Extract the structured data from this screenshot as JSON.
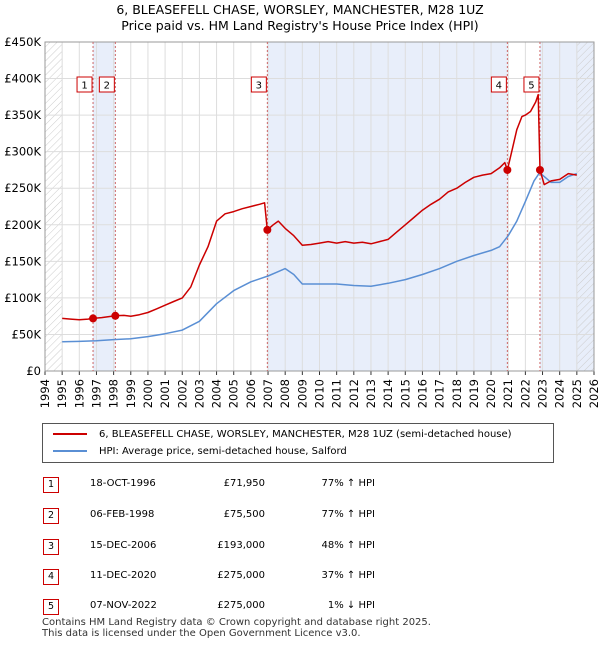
{
  "title_line1": "6, BLEASEFELL CHASE, WORSLEY, MANCHESTER, M28 1UZ",
  "title_line2": "Price paid vs. HM Land Registry's House Price Index (HPI)",
  "legend": {
    "property": "6, BLEASEFELL CHASE, WORSLEY, MANCHESTER, M28 1UZ (semi-detached house)",
    "hpi": "HPI: Average price, semi-detached house, Salford"
  },
  "colors": {
    "property_line": "#cc0000",
    "hpi_line": "#5a8fd4",
    "shade": "#e8eefa",
    "vline": "#cc6666"
  },
  "transactions": [
    {
      "num": "1",
      "date": "18-OCT-1996",
      "price": "£71,950",
      "hpi": "77% ↑ HPI",
      "t": 1996.8,
      "value": 71950
    },
    {
      "num": "2",
      "date": "06-FEB-1998",
      "price": "£75,500",
      "hpi": "77% ↑ HPI",
      "t": 1998.1,
      "value": 75500
    },
    {
      "num": "3",
      "date": "15-DEC-2006",
      "price": "£193,000",
      "hpi": "48% ↑ HPI",
      "t": 2006.96,
      "value": 193000
    },
    {
      "num": "4",
      "date": "11-DEC-2020",
      "price": "£275,000",
      "hpi": "37% ↑ HPI",
      "t": 2020.95,
      "value": 275000
    },
    {
      "num": "5",
      "date": "07-NOV-2022",
      "price": "£275,000",
      "hpi": "1% ↓ HPI",
      "t": 2022.85,
      "value": 275000
    }
  ],
  "footer_line1": "Contains HM Land Registry data © Crown copyright and database right 2025.",
  "footer_line2": "This data is licensed under the Open Government Licence v3.0.",
  "chart_data": {
    "type": "line",
    "title": "6, BLEASEFELL CHASE, WORSLEY, MANCHESTER, M28 1UZ — Price paid vs. HM Land Registry's House Price Index (HPI)",
    "xlabel": "",
    "ylabel": "",
    "xlim": [
      1994,
      2026
    ],
    "ylim": [
      0,
      450000
    ],
    "x_ticks": [
      1994,
      1995,
      1996,
      1997,
      1998,
      1999,
      2000,
      2001,
      2002,
      2003,
      2004,
      2005,
      2006,
      2007,
      2008,
      2009,
      2010,
      2011,
      2012,
      2013,
      2014,
      2015,
      2016,
      2017,
      2018,
      2019,
      2020,
      2021,
      2022,
      2023,
      2024,
      2025,
      2026
    ],
    "y_ticks": [
      0,
      50000,
      100000,
      150000,
      200000,
      250000,
      300000,
      350000,
      400000,
      450000
    ],
    "y_tick_labels": [
      "£0",
      "£50K",
      "£100K",
      "£150K",
      "£200K",
      "£250K",
      "£300K",
      "£350K",
      "£400K",
      "£450K"
    ],
    "grid": true,
    "data_available_from": 1995.0,
    "data_available_to": 2025.0,
    "series": [
      {
        "name": "6, BLEASEFELL CHASE, WORSLEY, MANCHESTER, M28 1UZ (semi-detached house)",
        "x": [
          1995.0,
          1995.5,
          1996.0,
          1996.5,
          1996.8,
          1997.3,
          1998.1,
          1998.6,
          1999.0,
          1999.5,
          2000.0,
          2000.5,
          2001.0,
          2001.5,
          2002.0,
          2002.5,
          2003.0,
          2003.5,
          2004.0,
          2004.5,
          2005.0,
          2005.5,
          2006.0,
          2006.5,
          2006.8,
          2006.96,
          2007.3,
          2007.6,
          2008.0,
          2008.5,
          2009.0,
          2009.5,
          2010.0,
          2010.5,
          2011.0,
          2011.5,
          2012.0,
          2012.5,
          2013.0,
          2013.5,
          2014.0,
          2014.5,
          2015.0,
          2015.5,
          2016.0,
          2016.5,
          2017.0,
          2017.5,
          2018.0,
          2018.5,
          2019.0,
          2019.5,
          2020.0,
          2020.5,
          2020.8,
          2020.95,
          2021.2,
          2021.5,
          2021.8,
          2022.0,
          2022.3,
          2022.6,
          2022.75,
          2022.85,
          2023.1,
          2023.5,
          2024.0,
          2024.5,
          2025.0
        ],
        "values": [
          72000,
          71000,
          70000,
          71000,
          71950,
          73000,
          75500,
          76000,
          75000,
          77000,
          80000,
          85000,
          90000,
          95000,
          100000,
          115000,
          145000,
          170000,
          205000,
          215000,
          218000,
          222000,
          225000,
          228000,
          230000,
          193000,
          200000,
          205000,
          195000,
          185000,
          172000,
          173000,
          175000,
          177000,
          175000,
          177000,
          175000,
          176000,
          174000,
          177000,
          180000,
          190000,
          200000,
          210000,
          220000,
          228000,
          235000,
          245000,
          250000,
          258000,
          265000,
          268000,
          270000,
          278000,
          285000,
          275000,
          300000,
          330000,
          348000,
          350000,
          355000,
          368000,
          378000,
          275000,
          255000,
          260000,
          262000,
          270000,
          268000
        ]
      },
      {
        "name": "HPI: Average price, semi-detached house, Salford",
        "x": [
          1995.0,
          1996.0,
          1997.0,
          1998.0,
          1999.0,
          2000.0,
          2001.0,
          2002.0,
          2003.0,
          2004.0,
          2005.0,
          2006.0,
          2007.0,
          2007.5,
          2008.0,
          2008.5,
          2009.0,
          2010.0,
          2011.0,
          2012.0,
          2013.0,
          2014.0,
          2015.0,
          2016.0,
          2017.0,
          2018.0,
          2019.0,
          2020.0,
          2020.5,
          2021.0,
          2021.5,
          2022.0,
          2022.5,
          2022.85,
          2023.0,
          2023.5,
          2024.0,
          2024.5,
          2025.0
        ],
        "values": [
          40000,
          40500,
          41500,
          43000,
          44000,
          47000,
          51000,
          56000,
          68000,
          92000,
          110000,
          122000,
          130000,
          135000,
          140000,
          132000,
          119000,
          119000,
          119000,
          117000,
          116000,
          120000,
          125000,
          132000,
          140000,
          150000,
          158000,
          165000,
          170000,
          185000,
          205000,
          232000,
          260000,
          272000,
          268000,
          258000,
          258000,
          266000,
          270000
        ]
      }
    ],
    "annotations": [
      "1",
      "2",
      "3",
      "4",
      "5"
    ]
  }
}
